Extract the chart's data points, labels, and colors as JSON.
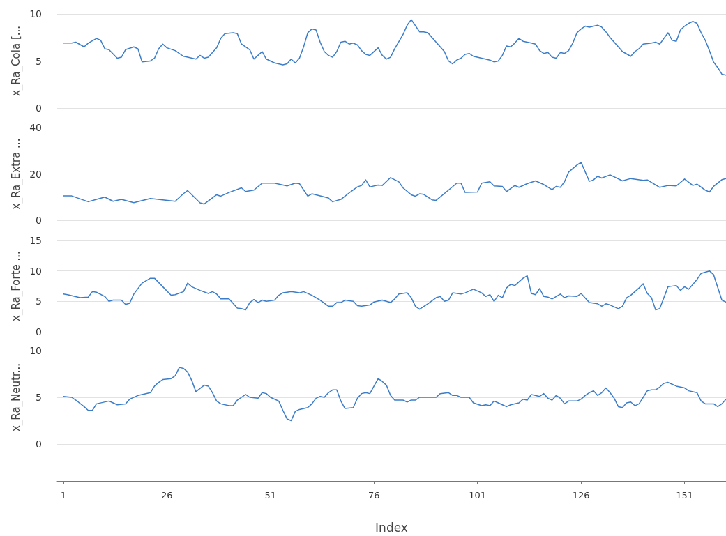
{
  "chart_data": [
    {
      "type": "line",
      "ylabel": "x_Ra_Cola [...",
      "xlim": [
        -0.5,
        161
      ],
      "ylim": [
        0,
        10
      ],
      "yticks": [
        0,
        5,
        10
      ],
      "grid": "y",
      "tick_labels": "y",
      "marker": "none",
      "series": [
        {
          "color": "#3b7dc9",
          "x": [
            1,
            3,
            4,
            6,
            7,
            9,
            10,
            11,
            12,
            14,
            15,
            16,
            18,
            19,
            20,
            22,
            23,
            24,
            25,
            26,
            28,
            30,
            31,
            33,
            34,
            35,
            36,
            38,
            39,
            40,
            42,
            43,
            44,
            46,
            47,
            48,
            49,
            50,
            52,
            54,
            55,
            56,
            57,
            58,
            59,
            60,
            61,
            62,
            63,
            64,
            65,
            66,
            67,
            68,
            69,
            70,
            71,
            72,
            73,
            74,
            75,
            77,
            78,
            79,
            80,
            81,
            83,
            84,
            85,
            87,
            88,
            89,
            91,
            93,
            94,
            95,
            96,
            97,
            98,
            99,
            100,
            102,
            104,
            105,
            106,
            107,
            108,
            109,
            110,
            111,
            112,
            114,
            115,
            116,
            117,
            118,
            119,
            120,
            121,
            122,
            123,
            124,
            125,
            126,
            127,
            128,
            130,
            131,
            132,
            133,
            135,
            136,
            138,
            139,
            140,
            141,
            143,
            144,
            145,
            146,
            147,
            148,
            149,
            150,
            151,
            152,
            153,
            154,
            155,
            156,
            157,
            158,
            159,
            160,
            161
          ],
          "values": [
            6.9,
            6.9,
            7.0,
            6.5,
            6.9,
            7.4,
            7.2,
            6.3,
            6.2,
            5.3,
            5.4,
            6.2,
            6.5,
            6.3,
            4.9,
            5.0,
            5.3,
            6.3,
            6.8,
            6.4,
            6.1,
            5.5,
            5.4,
            5.2,
            5.6,
            5.3,
            5.4,
            6.4,
            7.4,
            7.9,
            8.0,
            7.9,
            6.8,
            6.2,
            5.2,
            5.6,
            6.0,
            5.2,
            4.8,
            4.6,
            4.7,
            5.2,
            4.8,
            5.3,
            6.5,
            8.0,
            8.4,
            8.3,
            7.0,
            6.0,
            5.6,
            5.4,
            6.0,
            7.0,
            7.1,
            6.8,
            6.9,
            6.7,
            6.1,
            5.7,
            5.6,
            6.4,
            5.6,
            5.2,
            5.4,
            6.3,
            7.8,
            8.8,
            9.4,
            8.1,
            8.1,
            8.0,
            7.0,
            6.0,
            5.0,
            4.7,
            5.1,
            5.3,
            5.7,
            5.8,
            5.5,
            5.3,
            5.1,
            4.9,
            5.0,
            5.6,
            6.6,
            6.5,
            6.9,
            7.4,
            7.1,
            6.9,
            6.8,
            6.1,
            5.8,
            5.9,
            5.4,
            5.3,
            5.9,
            5.8,
            6.1,
            6.9,
            8.0,
            8.4,
            8.7,
            8.6,
            8.8,
            8.6,
            8.1,
            7.5,
            6.5,
            6.0,
            5.5,
            6.0,
            6.3,
            6.8,
            6.9,
            7.0,
            6.8,
            7.4,
            8.0,
            7.2,
            7.1,
            8.3,
            8.7,
            9.0,
            9.2,
            9.0,
            8.0,
            7.2,
            6.1,
            4.9,
            4.3,
            3.6,
            3.5
          ]
        }
      ]
    },
    {
      "type": "line",
      "ylabel": "x_Ra_Extra ...",
      "xlim": [
        -0.5,
        161
      ],
      "ylim": [
        0,
        40
      ],
      "yticks": [
        0,
        20,
        40
      ],
      "grid": "y",
      "tick_labels": "y",
      "marker": "none",
      "series": [
        {
          "color": "#3b7dc9",
          "x": [
            1,
            3,
            7,
            9,
            11,
            13,
            15,
            18,
            22,
            25,
            28,
            30,
            31,
            34,
            35,
            38,
            39,
            41,
            44,
            45,
            47,
            49,
            52,
            55,
            57,
            58,
            60,
            61,
            65,
            66,
            68,
            70,
            72,
            73,
            74,
            75,
            77,
            78,
            80,
            82,
            83,
            85,
            86,
            87,
            88,
            90,
            91,
            94,
            96,
            97,
            98,
            101,
            102,
            104,
            105,
            107,
            108,
            110,
            111,
            113,
            115,
            117,
            119,
            120,
            121,
            122,
            123,
            125,
            126,
            128,
            129,
            130,
            131,
            133,
            136,
            138,
            141,
            142,
            145,
            147,
            149,
            151,
            153,
            154,
            156,
            157,
            158,
            160,
            161
          ],
          "values": [
            10.5,
            10.5,
            8,
            9,
            10,
            8.2,
            9,
            7.6,
            9.4,
            8.8,
            8.2,
            11.5,
            12.8,
            7.5,
            7,
            11,
            10.4,
            12,
            14,
            12.4,
            13,
            16,
            16,
            14.8,
            16,
            15.8,
            10.4,
            11.4,
            9.6,
            8,
            9,
            11.8,
            14.4,
            15,
            17.4,
            14.4,
            15.2,
            15,
            18.4,
            16.6,
            14,
            11,
            10.4,
            11.4,
            11.2,
            8.8,
            8.6,
            13,
            16,
            16,
            12,
            12.2,
            16,
            16.6,
            14.8,
            14.6,
            12.4,
            15,
            14.2,
            15.8,
            17,
            15.4,
            13.2,
            14.6,
            14.2,
            16.6,
            20.8,
            23.8,
            25,
            16.8,
            17.4,
            19,
            18.2,
            19.6,
            17,
            18,
            17.2,
            17.4,
            14.2,
            15,
            14.8,
            17.8,
            15,
            15.6,
            13,
            12.2,
            14.6,
            17.5,
            18
          ]
        }
      ]
    },
    {
      "type": "line",
      "ylabel": "x_Ra_Forte ...",
      "xlim": [
        -0.5,
        161
      ],
      "ylim": [
        0,
        15
      ],
      "yticks": [
        0,
        5,
        10,
        15
      ],
      "grid": "y",
      "tick_labels": "y",
      "marker": "none",
      "series": [
        {
          "color": "#3b7dc9",
          "x": [
            1,
            2,
            5,
            7,
            8,
            9,
            11,
            12,
            13,
            15,
            16,
            17,
            18,
            20,
            22,
            23,
            25,
            27,
            28,
            30,
            31,
            32,
            34,
            36,
            37,
            38,
            39,
            41,
            43,
            44,
            45,
            46,
            47,
            48,
            49,
            50,
            52,
            53,
            54,
            55,
            56,
            58,
            59,
            61,
            62,
            63,
            65,
            66,
            67,
            68,
            69,
            71,
            72,
            73,
            75,
            76,
            78,
            80,
            81,
            82,
            84,
            85,
            86,
            87,
            89,
            91,
            92,
            93,
            94,
            95,
            97,
            98,
            100,
            102,
            103,
            104,
            105,
            106,
            107,
            108,
            109,
            110,
            112,
            113,
            114,
            115,
            116,
            117,
            118,
            119,
            121,
            122,
            123,
            125,
            126,
            128,
            130,
            131,
            132,
            133,
            135,
            136,
            137,
            138,
            140,
            141,
            142,
            143,
            144,
            145,
            147,
            149,
            150,
            151,
            152,
            154,
            155,
            157,
            158,
            160,
            161
          ],
          "values": [
            6.2,
            6.1,
            5.6,
            5.7,
            6.6,
            6.5,
            5.8,
            5.0,
            5.2,
            5.2,
            4.5,
            4.7,
            6.2,
            8.0,
            8.8,
            8.8,
            7.4,
            6.0,
            6.1,
            6.6,
            8.0,
            7.4,
            6.8,
            6.3,
            6.6,
            6.2,
            5.4,
            5.4,
            3.9,
            3.8,
            3.6,
            4.8,
            5.3,
            4.8,
            5.2,
            5.0,
            5.2,
            6.0,
            6.4,
            6.5,
            6.6,
            6.4,
            6.6,
            6.0,
            5.6,
            5.2,
            4.2,
            4.2,
            4.8,
            4.8,
            5.2,
            5.0,
            4.3,
            4.2,
            4.4,
            4.9,
            5.2,
            4.8,
            5.4,
            6.2,
            6.4,
            5.6,
            4.2,
            3.7,
            4.6,
            5.6,
            5.8,
            5.0,
            5.2,
            6.4,
            6.2,
            6.4,
            7.0,
            6.4,
            5.8,
            6.1,
            5.0,
            6.0,
            5.6,
            7.2,
            7.8,
            7.6,
            8.8,
            9.2,
            6.3,
            6.1,
            7.1,
            5.8,
            5.7,
            5.4,
            6.2,
            5.6,
            5.9,
            5.8,
            6.3,
            4.8,
            4.6,
            4.2,
            4.6,
            4.4,
            3.8,
            4.2,
            5.6,
            6.0,
            7.2,
            7.9,
            6.3,
            5.6,
            3.6,
            3.8,
            7.4,
            7.6,
            6.8,
            7.4,
            7.0,
            8.6,
            9.6,
            10,
            9.4,
            5.2,
            4.9
          ]
        }
      ]
    },
    {
      "type": "line",
      "ylabel": "x_Ra_Neutr...",
      "xlabel": "Index",
      "xlim": [
        -0.5,
        161
      ],
      "xticks": [
        1,
        26,
        51,
        76,
        101,
        126,
        151
      ],
      "ylim": [
        0,
        10
      ],
      "yticks": [
        0,
        5,
        10
      ],
      "grid": "y",
      "marker": "none",
      "series": [
        {
          "color": "#3b7dc9",
          "x": [
            1,
            3,
            4,
            6,
            7,
            8,
            9,
            12,
            13,
            14,
            16,
            17,
            19,
            20,
            22,
            23,
            24,
            25,
            27,
            28,
            29,
            30,
            31,
            32,
            33,
            35,
            36,
            37,
            38,
            39,
            41,
            42,
            43,
            44,
            45,
            46,
            48,
            49,
            50,
            51,
            53,
            54,
            55,
            56,
            57,
            58,
            60,
            61,
            62,
            63,
            64,
            65,
            66,
            67,
            68,
            69,
            71,
            72,
            73,
            74,
            75,
            76,
            77,
            78,
            79,
            80,
            81,
            83,
            84,
            85,
            86,
            87,
            89,
            91,
            92,
            94,
            95,
            96,
            97,
            99,
            100,
            102,
            103,
            104,
            105,
            106,
            107,
            108,
            109,
            111,
            112,
            113,
            114,
            116,
            117,
            118,
            119,
            120,
            121,
            122,
            123,
            125,
            126,
            127,
            128,
            129,
            130,
            131,
            132,
            133,
            134,
            135,
            136,
            137,
            138,
            139,
            140,
            141,
            142,
            143,
            144,
            145,
            146,
            147,
            148,
            149,
            151,
            152,
            153,
            154,
            155,
            156,
            158,
            159,
            160,
            161
          ],
          "values": [
            5.1,
            5.0,
            4.7,
            4.0,
            3.6,
            3.6,
            4.3,
            4.6,
            4.4,
            4.2,
            4.3,
            4.8,
            5.2,
            5.3,
            5.5,
            6.2,
            6.6,
            6.9,
            7.0,
            7.3,
            8.2,
            8.1,
            7.7,
            6.8,
            5.6,
            6.3,
            6.2,
            5.5,
            4.6,
            4.3,
            4.1,
            4.1,
            4.7,
            5.0,
            5.3,
            5.0,
            4.9,
            5.5,
            5.4,
            5.0,
            4.6,
            3.6,
            2.7,
            2.5,
            3.5,
            3.7,
            3.9,
            4.3,
            4.9,
            5.1,
            5.0,
            5.5,
            5.8,
            5.8,
            4.6,
            3.8,
            3.9,
            4.9,
            5.4,
            5.5,
            5.4,
            6.2,
            7.0,
            6.7,
            6.3,
            5.2,
            4.7,
            4.7,
            4.5,
            4.7,
            4.7,
            5.0,
            5.0,
            5.0,
            5.4,
            5.5,
            5.2,
            5.2,
            5.0,
            5.0,
            4.4,
            4.1,
            4.2,
            4.1,
            4.6,
            4.4,
            4.2,
            4.0,
            4.2,
            4.4,
            4.8,
            4.7,
            5.3,
            5.1,
            5.4,
            4.9,
            4.7,
            5.2,
            4.9,
            4.3,
            4.6,
            4.6,
            4.8,
            5.2,
            5.5,
            5.7,
            5.2,
            5.5,
            6.0,
            5.5,
            4.9,
            4.0,
            3.9,
            4.4,
            4.5,
            4.1,
            4.3,
            5.0,
            5.7,
            5.8,
            5.8,
            6.1,
            6.5,
            6.6,
            6.4,
            6.2,
            6.0,
            5.7,
            5.6,
            5.5,
            4.6,
            4.3,
            4.3,
            4.0,
            4.3,
            4.8
          ]
        }
      ]
    }
  ]
}
